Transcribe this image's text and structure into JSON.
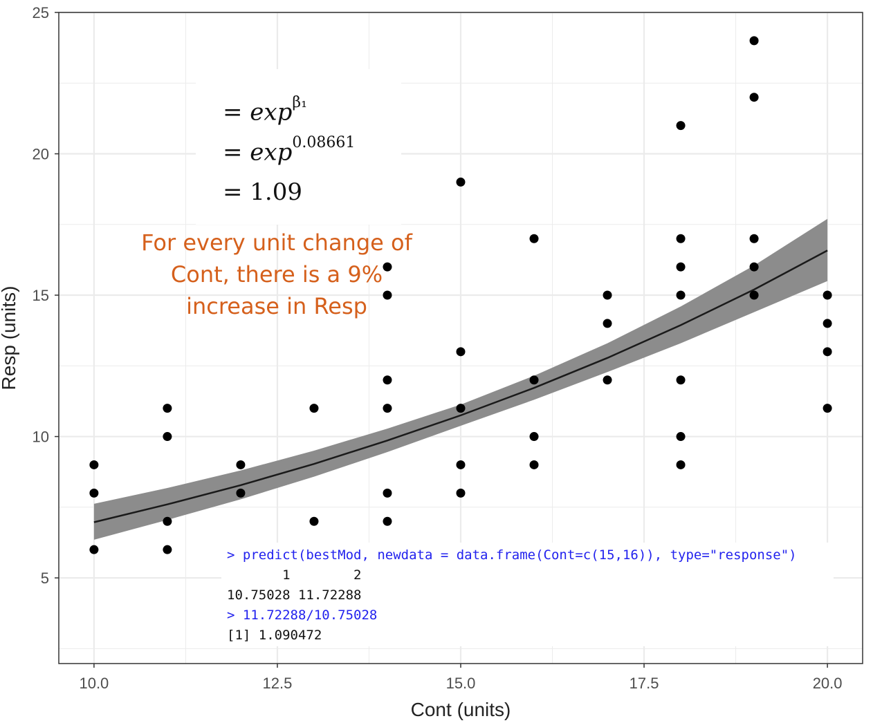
{
  "chart_data": {
    "type": "scatter",
    "xlabel": "Cont (units)",
    "ylabel": "Resp (units)",
    "xlim": [
      9.52,
      20.48
    ],
    "ylim": [
      1.97,
      25
    ],
    "x_ticks": [
      "10.0",
      "12.5",
      "15.0",
      "17.5",
      "20.0"
    ],
    "y_ticks": [
      "5",
      "10",
      "15",
      "20",
      "25"
    ],
    "grid": true,
    "points": {
      "x": [
        10,
        10,
        10,
        11,
        11,
        11,
        11,
        12,
        12,
        13,
        13,
        14,
        14,
        14,
        14,
        14,
        14,
        15,
        15,
        15,
        15,
        15,
        16,
        16,
        16,
        16,
        17,
        17,
        17,
        18,
        18,
        18,
        18,
        18,
        18,
        18,
        19,
        19,
        19,
        19,
        19,
        20,
        20,
        20,
        20
      ],
      "y": [
        9,
        8,
        6,
        11,
        10,
        7,
        6,
        9,
        8,
        11,
        7,
        16,
        15,
        12,
        11,
        8,
        7,
        19,
        13,
        11,
        9,
        8,
        17,
        12,
        10,
        9,
        15,
        14,
        12,
        21,
        17,
        16,
        15,
        12,
        10,
        9,
        24,
        22,
        17,
        16,
        15,
        15,
        14,
        13,
        11
      ]
    },
    "fit": {
      "x": [
        10,
        11,
        12,
        13,
        14,
        15,
        16,
        17,
        18,
        19,
        20
      ],
      "y": [
        6.97,
        7.6,
        8.28,
        9.03,
        9.86,
        10.75,
        11.72,
        12.78,
        13.94,
        15.2,
        16.58
      ],
      "ci_lower": [
        6.35,
        7.05,
        7.78,
        8.58,
        9.45,
        10.38,
        11.3,
        12.28,
        13.3,
        14.4,
        15.5
      ],
      "ci_upper": [
        7.62,
        8.18,
        8.8,
        9.5,
        10.28,
        11.13,
        12.15,
        13.3,
        14.6,
        16.05,
        17.7
      ]
    },
    "colors": {
      "points": "#000000",
      "fit_line": "#1a1a1a",
      "ci_band": "#8c8c8c",
      "grid": "#ebebeb"
    }
  },
  "equation": {
    "line1_base": "= exp",
    "line1_exp": "β₁",
    "line2_base": "= exp",
    "line2_exp": "0.08661",
    "line3": "= 1.09"
  },
  "annotation": {
    "lines": [
      "For every unit change of",
      "Cont, there is a 9%",
      "increase in Resp"
    ],
    "color": "#d5601c"
  },
  "console": {
    "cmd1": "> predict(bestMod, newdata = data.frame(Cont=c(15,16)), type=\"response\")",
    "header": "       1        2",
    "values": "10.75028 11.72288",
    "cmd2": "> 11.72288/10.75028",
    "result": "[1] 1.090472"
  }
}
